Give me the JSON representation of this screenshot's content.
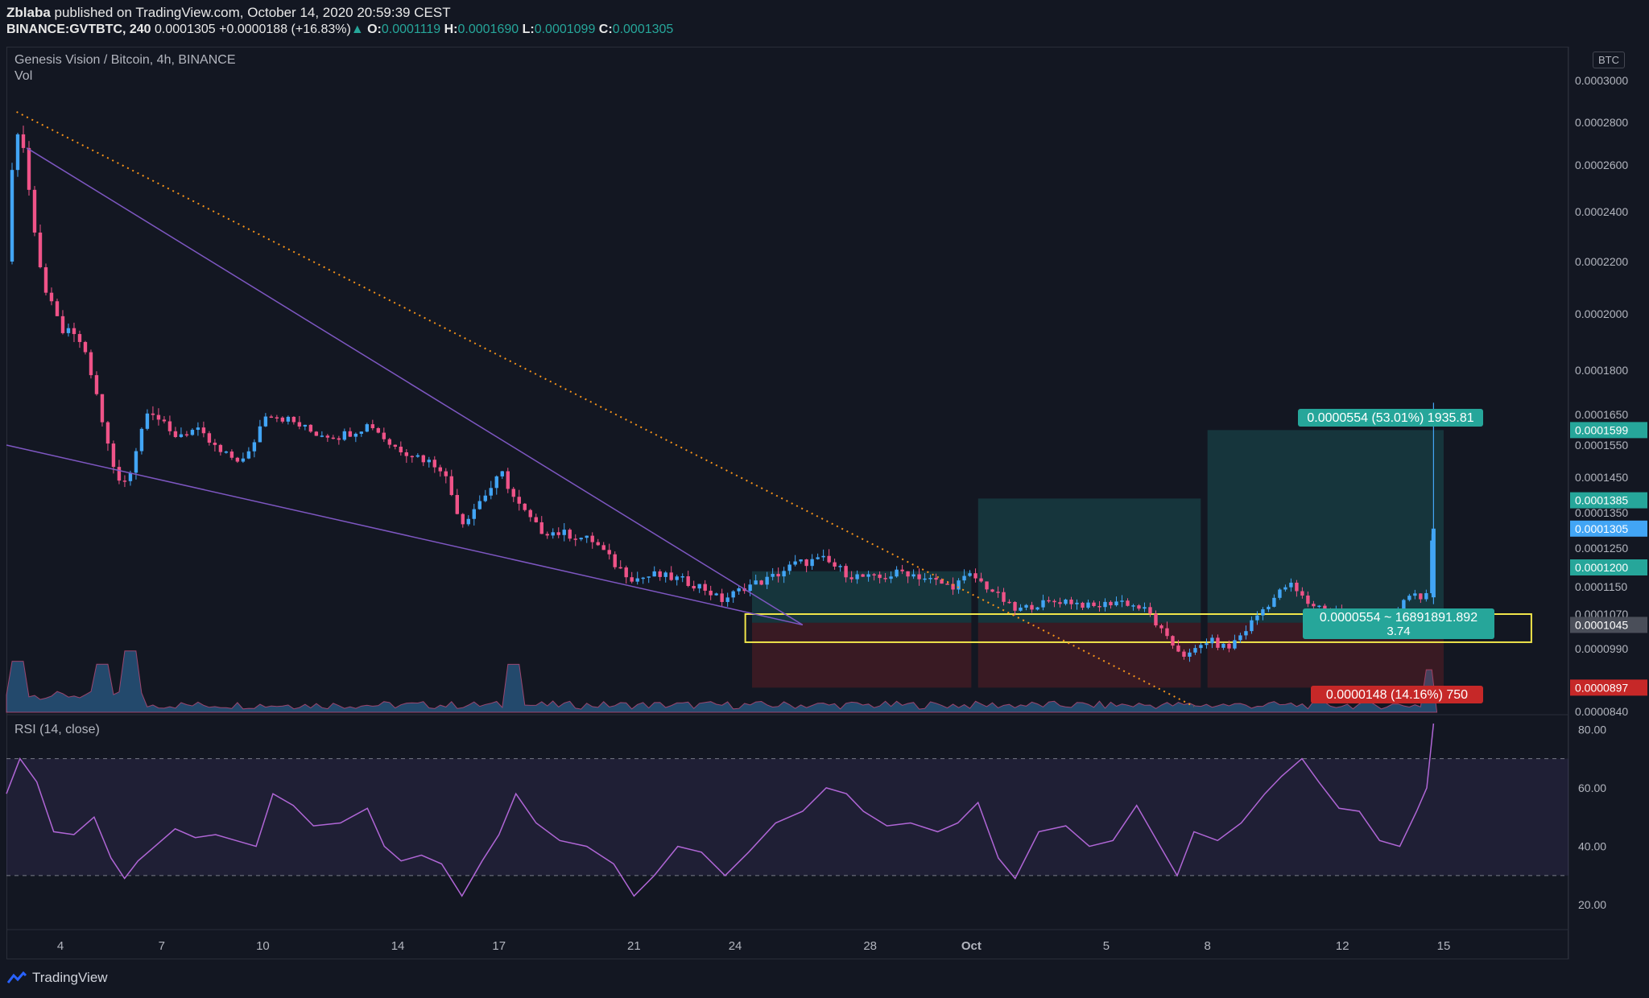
{
  "header": {
    "line1_user": "Zblaba",
    "line1_rest": " published on TradingView.com, October 14, 2020 20:59:39 CEST",
    "symbol": "BINANCE:GVTBTC, 240",
    "last": "0.0001305",
    "change": "+0.0000188 (+16.83%)",
    "o_label": "O:",
    "o": "0.0001119",
    "h_label": "H:",
    "h": "0.0001690",
    "l_label": "L:",
    "l": "0.0001099",
    "c_label": "C:",
    "c": "0.0001305"
  },
  "legend": "Genesis Vision / Bitcoin, 4h, BINANCE",
  "volume_label": "Vol",
  "currency_badge": "BTC",
  "rsi_label": "RSI (14, close)",
  "footer_brand": "TradingView",
  "colors": {
    "up": "#42a5f5",
    "down": "#ef5388",
    "rsi": "#b066d6",
    "teal": "#26a69a",
    "red": "#c62828",
    "yellow": "#f0e54a",
    "wedge": "#7e57c2",
    "trend": "#f7931a"
  },
  "chart_data": [
    {
      "type": "candlestick",
      "title": "Genesis Vision / Bitcoin, 4h, BINANCE",
      "y_ticks": [
        "0.0003000",
        "0.0002800",
        "0.0002600",
        "0.0002400",
        "0.0002200",
        "0.0002000",
        "0.0001800",
        "0.0001650",
        "0.0001550",
        "0.0001450",
        "0.0001350",
        "0.0001250",
        "0.0001150",
        "0.0001070",
        "0.0000990",
        "0.0000840"
      ],
      "y_tick_values": [
        0.0003,
        0.00028,
        0.00026,
        0.00024,
        0.00022,
        0.0002,
        0.00018,
        0.000165,
        0.000155,
        0.000145,
        0.000135,
        0.000125,
        0.000115,
        0.000107,
        9.9e-05,
        8.4e-05
      ],
      "x_ticks": [
        "4",
        "7",
        "10",
        "14",
        "17",
        "21",
        "24",
        "28",
        "Oct",
        "5",
        "8",
        "12",
        "15"
      ],
      "x_tick_days": [
        4,
        7,
        10,
        14,
        17,
        21,
        24,
        28,
        31,
        35,
        38,
        42,
        45
      ],
      "x_range_days": [
        2.4,
        48.7
      ],
      "price_path": [
        [
          2.4,
          0.00022
        ],
        [
          2.6,
          0.000265
        ],
        [
          2.8,
          0.00028
        ],
        [
          3.1,
          0.000245
        ],
        [
          3.5,
          0.00021
        ],
        [
          4.0,
          0.000195
        ],
        [
          4.6,
          0.00019
        ],
        [
          5.0,
          0.000175
        ],
        [
          5.5,
          0.00015
        ],
        [
          5.8,
          0.000142
        ],
        [
          6.1,
          0.000148
        ],
        [
          6.6,
          0.000168
        ],
        [
          7.3,
          0.000158
        ],
        [
          8.0,
          0.00016
        ],
        [
          8.8,
          0.000152
        ],
        [
          9.5,
          0.00015
        ],
        [
          10.1,
          0.000166
        ],
        [
          10.8,
          0.000163
        ],
        [
          11.5,
          0.000159
        ],
        [
          12.3,
          0.000158
        ],
        [
          13.2,
          0.000162
        ],
        [
          13.8,
          0.000155
        ],
        [
          14.5,
          0.000152
        ],
        [
          15.3,
          0.000148
        ],
        [
          15.9,
          0.000132
        ],
        [
          16.4,
          0.000138
        ],
        [
          17.1,
          0.000146
        ],
        [
          17.5,
          0.000138
        ],
        [
          18.2,
          0.00013
        ],
        [
          19.0,
          0.000129
        ],
        [
          19.8,
          0.000127
        ],
        [
          20.4,
          0.000121
        ],
        [
          21.0,
          0.000117
        ],
        [
          21.6,
          0.000118
        ],
        [
          22.3,
          0.000117
        ],
        [
          23.0,
          0.000115
        ],
        [
          23.6,
          0.000111
        ],
        [
          24.3,
          0.000115
        ],
        [
          25.0,
          0.000117
        ],
        [
          25.8,
          0.000121
        ],
        [
          26.6,
          0.000122
        ],
        [
          27.4,
          0.000118
        ],
        [
          28.2,
          0.000117
        ],
        [
          29.0,
          0.000119
        ],
        [
          29.7,
          0.000117
        ],
        [
          30.4,
          0.000115
        ],
        [
          31.0,
          0.000118
        ],
        [
          31.6,
          0.000114
        ],
        [
          32.3,
          0.000108
        ],
        [
          33.0,
          0.00011
        ],
        [
          33.8,
          0.000111
        ],
        [
          34.6,
          0.000109
        ],
        [
          35.4,
          0.000111
        ],
        [
          36.2,
          0.000108
        ],
        [
          36.8,
          0.000101
        ],
        [
          37.4,
          9.7e-05
        ],
        [
          38.0,
          0.000101
        ],
        [
          38.6,
          9.9e-05
        ],
        [
          39.2,
          0.000104
        ],
        [
          39.8,
          0.00011
        ],
        [
          40.4,
          0.000116
        ],
        [
          41.0,
          0.00011
        ],
        [
          41.8,
          0.000108
        ],
        [
          42.6,
          0.000106
        ],
        [
          43.4,
          0.000105
        ],
        [
          44.0,
          0.000113
        ],
        [
          44.5,
          0.000112
        ],
        [
          44.7,
          0.0001305
        ]
      ],
      "volume_spike_days": [
        2.7,
        5.2,
        6.0,
        17.5,
        44.7
      ],
      "position_tools": [
        {
          "entry_day_start": 24.5,
          "entry_day_end": 31.0,
          "target": 0.000119,
          "entry": 0.000105,
          "stop": 8.97e-05
        },
        {
          "entry_day_start": 31.2,
          "entry_day_end": 37.8,
          "target": 0.000139,
          "entry": 0.000105,
          "stop": 8.97e-05
        },
        {
          "entry_day_start": 38.0,
          "entry_day_end": 45.0,
          "target": 0.0001599,
          "entry": 0.000105,
          "stop": 8.97e-05
        }
      ],
      "target_label": "0.0000554 (53.01%) 1935.81",
      "stop_label": "0.0000148 (14.16%) 750",
      "mid_label_line1": "0.0000554 ~ 16891891.892",
      "mid_label_line2": "3.74",
      "support_box": {
        "top": 0.000107,
        "bottom": 0.0001005,
        "day_start": 24.3,
        "day_end": 47.6
      },
      "price_badges": [
        {
          "value": "0.0001599",
          "price": 0.0001599,
          "color": "#26a69a"
        },
        {
          "value": "0.0001385",
          "price": 0.0001385,
          "color": "#26a69a"
        },
        {
          "value": "0.0001305",
          "price": 0.0001305,
          "color": "#42a5f5"
        },
        {
          "value": "0.0001200",
          "price": 0.00012,
          "color": "#26a69a"
        },
        {
          "value": "0.0001045",
          "price": 0.0001045,
          "color": "#4a4e59"
        },
        {
          "value": "0.0000897",
          "price": 8.97e-05,
          "color": "#c62828"
        }
      ]
    },
    {
      "type": "line",
      "title": "RSI (14, close)",
      "y_ticks": [
        "80.00",
        "60.00",
        "40.00",
        "20.00"
      ],
      "y_tick_values": [
        80,
        60,
        40,
        20
      ],
      "bands": [
        30,
        70
      ],
      "points": [
        [
          2.4,
          58
        ],
        [
          2.8,
          70
        ],
        [
          3.3,
          62
        ],
        [
          3.8,
          45
        ],
        [
          4.4,
          44
        ],
        [
          5.0,
          50
        ],
        [
          5.5,
          36
        ],
        [
          5.9,
          29
        ],
        [
          6.3,
          35
        ],
        [
          6.8,
          40
        ],
        [
          7.4,
          46
        ],
        [
          8.0,
          43
        ],
        [
          8.6,
          44
        ],
        [
          9.2,
          42
        ],
        [
          9.8,
          40
        ],
        [
          10.3,
          58
        ],
        [
          10.9,
          54
        ],
        [
          11.5,
          47
        ],
        [
          12.3,
          48
        ],
        [
          13.1,
          53
        ],
        [
          13.6,
          40
        ],
        [
          14.1,
          35
        ],
        [
          14.7,
          37
        ],
        [
          15.3,
          34
        ],
        [
          15.9,
          23
        ],
        [
          16.5,
          35
        ],
        [
          17.0,
          44
        ],
        [
          17.5,
          58
        ],
        [
          18.1,
          48
        ],
        [
          18.8,
          42
        ],
        [
          19.6,
          40
        ],
        [
          20.4,
          34
        ],
        [
          21.0,
          23
        ],
        [
          21.6,
          30
        ],
        [
          22.3,
          40
        ],
        [
          23.0,
          38
        ],
        [
          23.7,
          30
        ],
        [
          24.4,
          38
        ],
        [
          25.2,
          48
        ],
        [
          26.0,
          52
        ],
        [
          26.7,
          60
        ],
        [
          27.3,
          58
        ],
        [
          27.8,
          52
        ],
        [
          28.5,
          47
        ],
        [
          29.2,
          48
        ],
        [
          30.0,
          45
        ],
        [
          30.6,
          48
        ],
        [
          31.2,
          55
        ],
        [
          31.8,
          36
        ],
        [
          32.3,
          29
        ],
        [
          33.0,
          45
        ],
        [
          33.8,
          47
        ],
        [
          34.5,
          40
        ],
        [
          35.2,
          42
        ],
        [
          35.9,
          54
        ],
        [
          36.6,
          40
        ],
        [
          37.1,
          30
        ],
        [
          37.6,
          45
        ],
        [
          38.3,
          42
        ],
        [
          39.0,
          48
        ],
        [
          39.7,
          58
        ],
        [
          40.2,
          64
        ],
        [
          40.8,
          70
        ],
        [
          41.3,
          62
        ],
        [
          41.9,
          53
        ],
        [
          42.5,
          52
        ],
        [
          43.1,
          42
        ],
        [
          43.7,
          40
        ],
        [
          44.2,
          52
        ],
        [
          44.5,
          60
        ],
        [
          44.7,
          82
        ]
      ]
    }
  ]
}
